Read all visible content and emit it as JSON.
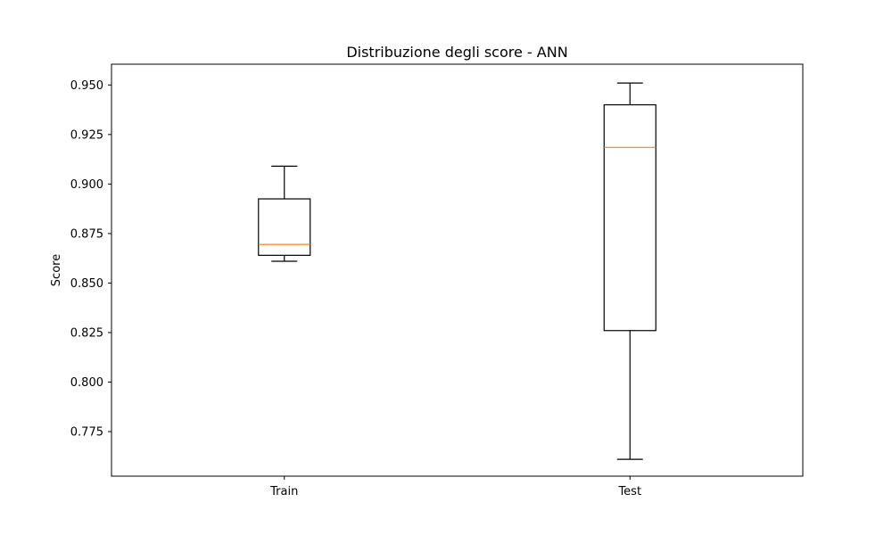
{
  "chart_data": {
    "type": "box",
    "title": "Distribuzione degli score - ANN",
    "xlabel": "",
    "ylabel": "Score",
    "categories": [
      "Train",
      "Test"
    ],
    "boxes": [
      {
        "category": "Train",
        "whisker_low": 0.861,
        "q1": 0.864,
        "median": 0.8695,
        "q3": 0.8925,
        "whisker_high": 0.909
      },
      {
        "category": "Test",
        "whisker_low": 0.761,
        "q1": 0.826,
        "median": 0.9185,
        "q3": 0.94,
        "whisker_high": 0.951
      }
    ],
    "ylim": [
      0.7525,
      0.9605
    ],
    "yticks": [
      0.775,
      0.8,
      0.825,
      0.85,
      0.875,
      0.9,
      0.925,
      0.95
    ],
    "ytick_labels": [
      "0.775",
      "0.800",
      "0.825",
      "0.850",
      "0.875",
      "0.900",
      "0.925",
      "0.950"
    ],
    "grid": false,
    "colors": {
      "box": "#000000",
      "median": "#ff7f0e",
      "axes": "#000000",
      "background": "#ffffff"
    }
  }
}
